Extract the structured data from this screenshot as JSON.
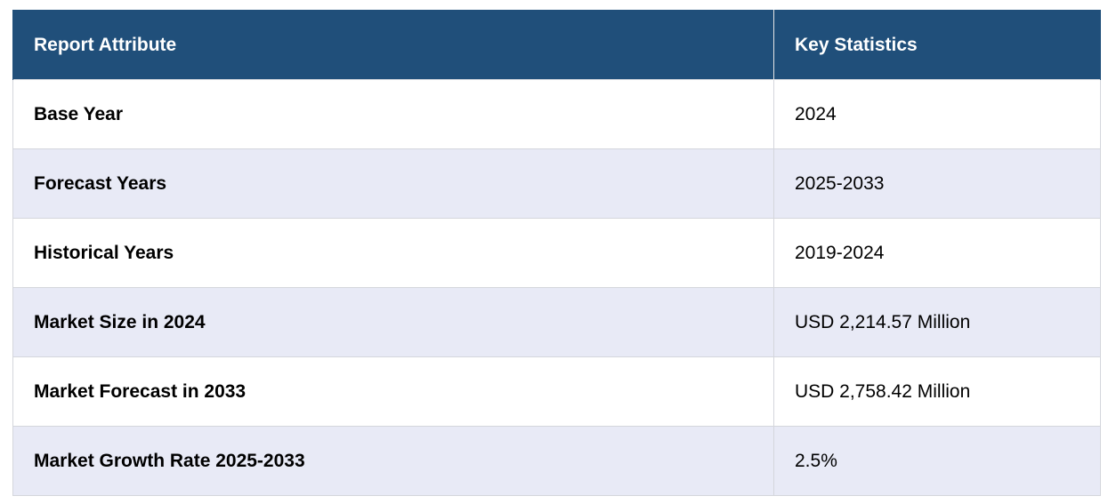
{
  "table": {
    "headers": [
      "Report Attribute",
      "Key Statistics"
    ],
    "rows": [
      {
        "attribute": "Base Year",
        "value": "2024"
      },
      {
        "attribute": "Forecast Years",
        "value": "2025-2033"
      },
      {
        "attribute": "Historical Years",
        "value": "2019-2024"
      },
      {
        "attribute": "Market Size in 2024",
        "value": "USD 2,214.57 Million"
      },
      {
        "attribute": "Market Forecast in 2033",
        "value": "USD 2,758.42 Million"
      },
      {
        "attribute": "Market Growth Rate 2025-2033",
        "value": "2.5%"
      }
    ]
  },
  "colors": {
    "header_bg": "#204f7a",
    "header_text": "#ffffff",
    "row_alt_bg": "#e8eaf6",
    "border": "#d4d6dc"
  }
}
